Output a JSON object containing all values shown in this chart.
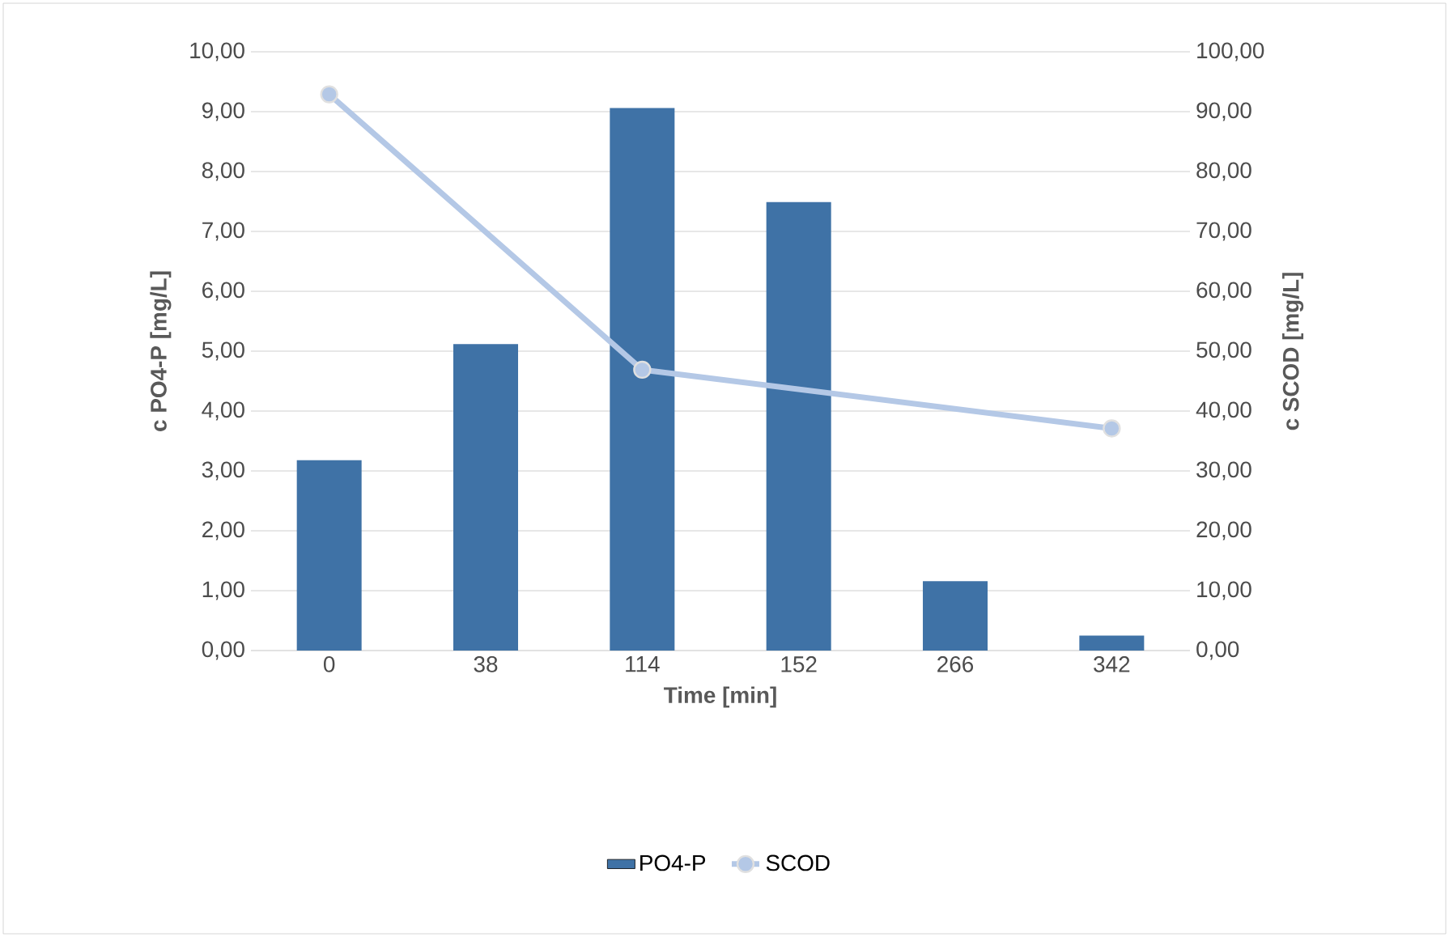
{
  "chart_data": {
    "type": "bar",
    "xlabel": "Time [min]",
    "ylabel": "c PO4-P [mg/L]",
    "y2label": "c SCOD [mg/L]",
    "categories": [
      "0",
      "38",
      "114",
      "152",
      "266",
      "342"
    ],
    "series": [
      {
        "name": "PO4-P",
        "color": "#3f72a6",
        "values": [
          3.18,
          5.12,
          9.06,
          7.49,
          1.16,
          0.25
        ]
      },
      {
        "name": "SCOD",
        "type": "line",
        "axis": "y2",
        "color": "#b4c8e6",
        "marker": "circle",
        "values": [
          92.9,
          null,
          46.9,
          null,
          null,
          37.1
        ]
      }
    ],
    "ylim": [
      0,
      10
    ],
    "yticks": [
      {
        "value": 0,
        "label": "0,00"
      },
      {
        "value": 1,
        "label": "1,00"
      },
      {
        "value": 2,
        "label": "2,00"
      },
      {
        "value": 3,
        "label": "3,00"
      },
      {
        "value": 4,
        "label": "4,00"
      },
      {
        "value": 5,
        "label": "5,00"
      },
      {
        "value": 6,
        "label": "6,00"
      },
      {
        "value": 7,
        "label": "7,00"
      },
      {
        "value": 8,
        "label": "8,00"
      },
      {
        "value": 9,
        "label": "9,00"
      },
      {
        "value": 10,
        "label": "10,00"
      }
    ],
    "y2lim": [
      0,
      100
    ],
    "y2ticks": [
      {
        "value": 0,
        "label": "0,00"
      },
      {
        "value": 10,
        "label": "10,00"
      },
      {
        "value": 20,
        "label": "20,00"
      },
      {
        "value": 30,
        "label": "30,00"
      },
      {
        "value": 40,
        "label": "40,00"
      },
      {
        "value": 50,
        "label": "50,00"
      },
      {
        "value": 60,
        "label": "60,00"
      },
      {
        "value": 70,
        "label": "70,00"
      },
      {
        "value": 80,
        "label": "80,00"
      },
      {
        "value": 90,
        "label": "90,00"
      },
      {
        "value": 100,
        "label": "100,00"
      }
    ],
    "grid": "y",
    "legend": "bottom"
  }
}
